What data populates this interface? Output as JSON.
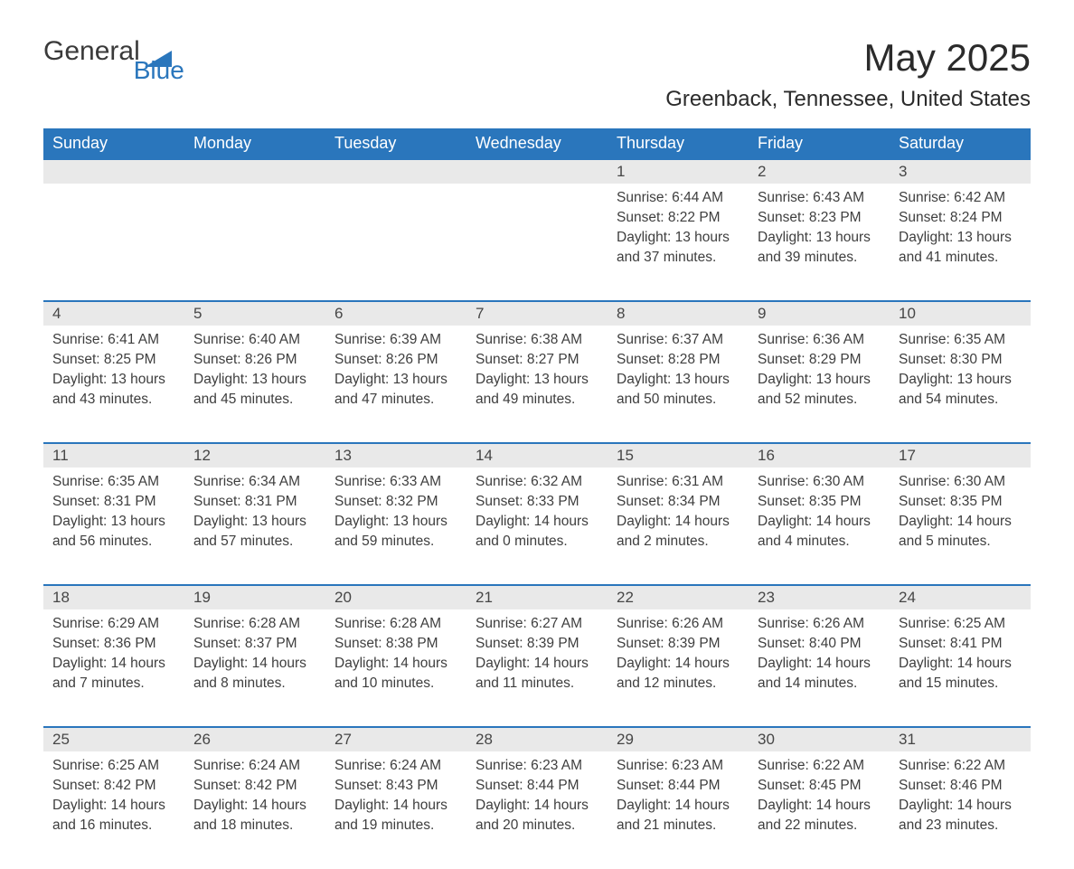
{
  "brand": {
    "name1": "General",
    "name2": "Blue"
  },
  "title": "May 2025",
  "location": "Greenback, Tennessee, United States",
  "colors": {
    "header_bg": "#2a76bc",
    "header_text": "#ffffff",
    "daynum_bg": "#e9e9e9",
    "body_text": "#3e3e3e",
    "rule": "#2a76bc"
  },
  "weekdays": [
    "Sunday",
    "Monday",
    "Tuesday",
    "Wednesday",
    "Thursday",
    "Friday",
    "Saturday"
  ],
  "weeks": [
    [
      null,
      null,
      null,
      null,
      {
        "n": "1",
        "sr": "Sunrise: 6:44 AM",
        "ss": "Sunset: 8:22 PM",
        "d1": "Daylight: 13 hours",
        "d2": "and 37 minutes."
      },
      {
        "n": "2",
        "sr": "Sunrise: 6:43 AM",
        "ss": "Sunset: 8:23 PM",
        "d1": "Daylight: 13 hours",
        "d2": "and 39 minutes."
      },
      {
        "n": "3",
        "sr": "Sunrise: 6:42 AM",
        "ss": "Sunset: 8:24 PM",
        "d1": "Daylight: 13 hours",
        "d2": "and 41 minutes."
      }
    ],
    [
      {
        "n": "4",
        "sr": "Sunrise: 6:41 AM",
        "ss": "Sunset: 8:25 PM",
        "d1": "Daylight: 13 hours",
        "d2": "and 43 minutes."
      },
      {
        "n": "5",
        "sr": "Sunrise: 6:40 AM",
        "ss": "Sunset: 8:26 PM",
        "d1": "Daylight: 13 hours",
        "d2": "and 45 minutes."
      },
      {
        "n": "6",
        "sr": "Sunrise: 6:39 AM",
        "ss": "Sunset: 8:26 PM",
        "d1": "Daylight: 13 hours",
        "d2": "and 47 minutes."
      },
      {
        "n": "7",
        "sr": "Sunrise: 6:38 AM",
        "ss": "Sunset: 8:27 PM",
        "d1": "Daylight: 13 hours",
        "d2": "and 49 minutes."
      },
      {
        "n": "8",
        "sr": "Sunrise: 6:37 AM",
        "ss": "Sunset: 8:28 PM",
        "d1": "Daylight: 13 hours",
        "d2": "and 50 minutes."
      },
      {
        "n": "9",
        "sr": "Sunrise: 6:36 AM",
        "ss": "Sunset: 8:29 PM",
        "d1": "Daylight: 13 hours",
        "d2": "and 52 minutes."
      },
      {
        "n": "10",
        "sr": "Sunrise: 6:35 AM",
        "ss": "Sunset: 8:30 PM",
        "d1": "Daylight: 13 hours",
        "d2": "and 54 minutes."
      }
    ],
    [
      {
        "n": "11",
        "sr": "Sunrise: 6:35 AM",
        "ss": "Sunset: 8:31 PM",
        "d1": "Daylight: 13 hours",
        "d2": "and 56 minutes."
      },
      {
        "n": "12",
        "sr": "Sunrise: 6:34 AM",
        "ss": "Sunset: 8:31 PM",
        "d1": "Daylight: 13 hours",
        "d2": "and 57 minutes."
      },
      {
        "n": "13",
        "sr": "Sunrise: 6:33 AM",
        "ss": "Sunset: 8:32 PM",
        "d1": "Daylight: 13 hours",
        "d2": "and 59 minutes."
      },
      {
        "n": "14",
        "sr": "Sunrise: 6:32 AM",
        "ss": "Sunset: 8:33 PM",
        "d1": "Daylight: 14 hours",
        "d2": "and 0 minutes."
      },
      {
        "n": "15",
        "sr": "Sunrise: 6:31 AM",
        "ss": "Sunset: 8:34 PM",
        "d1": "Daylight: 14 hours",
        "d2": "and 2 minutes."
      },
      {
        "n": "16",
        "sr": "Sunrise: 6:30 AM",
        "ss": "Sunset: 8:35 PM",
        "d1": "Daylight: 14 hours",
        "d2": "and 4 minutes."
      },
      {
        "n": "17",
        "sr": "Sunrise: 6:30 AM",
        "ss": "Sunset: 8:35 PM",
        "d1": "Daylight: 14 hours",
        "d2": "and 5 minutes."
      }
    ],
    [
      {
        "n": "18",
        "sr": "Sunrise: 6:29 AM",
        "ss": "Sunset: 8:36 PM",
        "d1": "Daylight: 14 hours",
        "d2": "and 7 minutes."
      },
      {
        "n": "19",
        "sr": "Sunrise: 6:28 AM",
        "ss": "Sunset: 8:37 PM",
        "d1": "Daylight: 14 hours",
        "d2": "and 8 minutes."
      },
      {
        "n": "20",
        "sr": "Sunrise: 6:28 AM",
        "ss": "Sunset: 8:38 PM",
        "d1": "Daylight: 14 hours",
        "d2": "and 10 minutes."
      },
      {
        "n": "21",
        "sr": "Sunrise: 6:27 AM",
        "ss": "Sunset: 8:39 PM",
        "d1": "Daylight: 14 hours",
        "d2": "and 11 minutes."
      },
      {
        "n": "22",
        "sr": "Sunrise: 6:26 AM",
        "ss": "Sunset: 8:39 PM",
        "d1": "Daylight: 14 hours",
        "d2": "and 12 minutes."
      },
      {
        "n": "23",
        "sr": "Sunrise: 6:26 AM",
        "ss": "Sunset: 8:40 PM",
        "d1": "Daylight: 14 hours",
        "d2": "and 14 minutes."
      },
      {
        "n": "24",
        "sr": "Sunrise: 6:25 AM",
        "ss": "Sunset: 8:41 PM",
        "d1": "Daylight: 14 hours",
        "d2": "and 15 minutes."
      }
    ],
    [
      {
        "n": "25",
        "sr": "Sunrise: 6:25 AM",
        "ss": "Sunset: 8:42 PM",
        "d1": "Daylight: 14 hours",
        "d2": "and 16 minutes."
      },
      {
        "n": "26",
        "sr": "Sunrise: 6:24 AM",
        "ss": "Sunset: 8:42 PM",
        "d1": "Daylight: 14 hours",
        "d2": "and 18 minutes."
      },
      {
        "n": "27",
        "sr": "Sunrise: 6:24 AM",
        "ss": "Sunset: 8:43 PM",
        "d1": "Daylight: 14 hours",
        "d2": "and 19 minutes."
      },
      {
        "n": "28",
        "sr": "Sunrise: 6:23 AM",
        "ss": "Sunset: 8:44 PM",
        "d1": "Daylight: 14 hours",
        "d2": "and 20 minutes."
      },
      {
        "n": "29",
        "sr": "Sunrise: 6:23 AM",
        "ss": "Sunset: 8:44 PM",
        "d1": "Daylight: 14 hours",
        "d2": "and 21 minutes."
      },
      {
        "n": "30",
        "sr": "Sunrise: 6:22 AM",
        "ss": "Sunset: 8:45 PM",
        "d1": "Daylight: 14 hours",
        "d2": "and 22 minutes."
      },
      {
        "n": "31",
        "sr": "Sunrise: 6:22 AM",
        "ss": "Sunset: 8:46 PM",
        "d1": "Daylight: 14 hours",
        "d2": "and 23 minutes."
      }
    ]
  ]
}
